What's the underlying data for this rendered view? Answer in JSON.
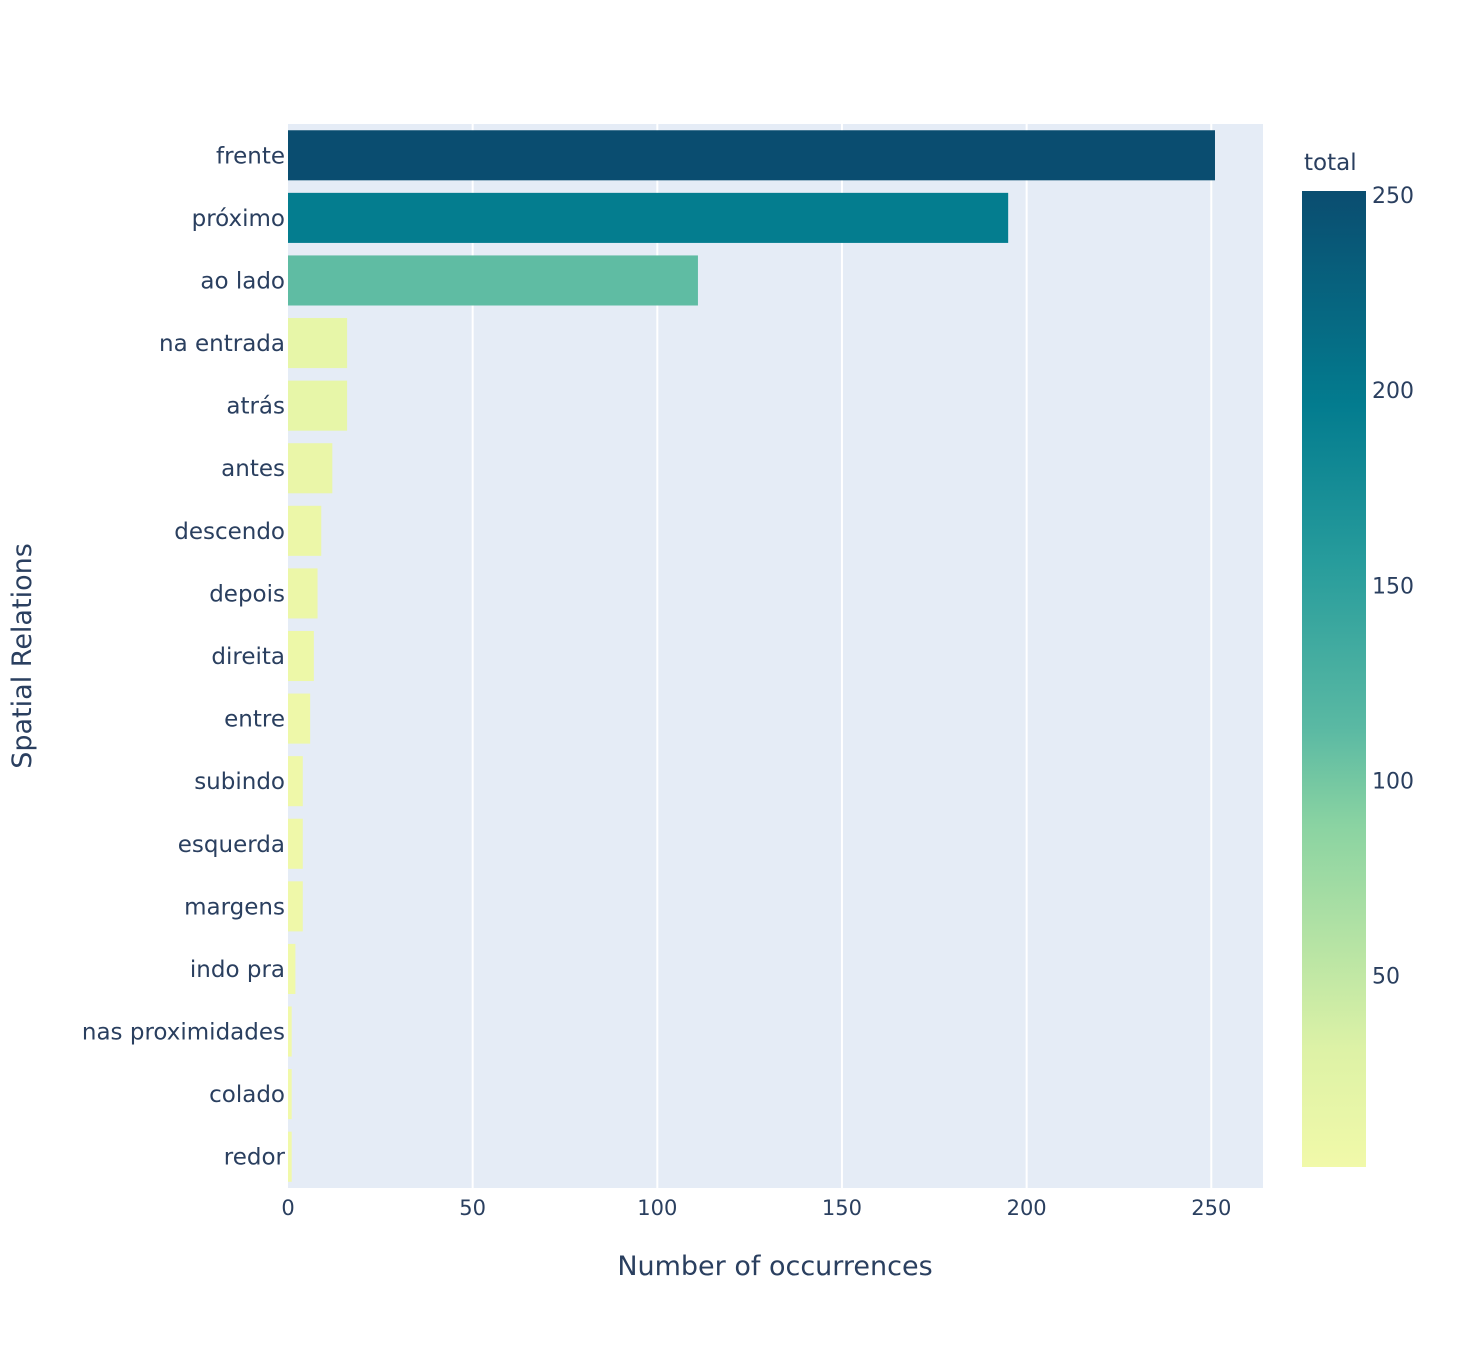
{
  "chart_data": {
    "type": "bar",
    "orientation": "horizontal",
    "xlabel": "Number of occurrences",
    "ylabel": "Spatial Relations",
    "xlim": [
      0,
      264
    ],
    "xticks": [
      0,
      50,
      100,
      150,
      200,
      250
    ],
    "grid": true,
    "categories": [
      "frente",
      "próximo",
      "ao lado",
      "na entrada",
      "atrás",
      "antes",
      "descendo",
      "depois",
      "direita",
      "entre",
      "subindo",
      "esquerda",
      "margens",
      "indo pra",
      "nas proximidades",
      "colado",
      "redor"
    ],
    "values": [
      251,
      195,
      111,
      16,
      16,
      12,
      9,
      8,
      7,
      6,
      4,
      4,
      4,
      2,
      1,
      1,
      1
    ],
    "colorbar": {
      "title": "total",
      "min": 1,
      "max": 251,
      "ticks": [
        50,
        100,
        150,
        200,
        250
      ],
      "colorscale": [
        "#ffffcc",
        "#a1dab4",
        "#41b6c4",
        "#2c7fb8",
        "#0c2c84"
      ]
    }
  },
  "colors": {
    "plot_background": "#e5ecf6",
    "grid": "#ffffff",
    "text": "#2a3f5f",
    "scale": [
      [
        0.0,
        "#f1f9a9"
      ],
      [
        0.12,
        "#ddf2a6"
      ],
      [
        0.35,
        "#8ad3a2"
      ],
      [
        0.45,
        "#5ab9a3"
      ],
      [
        0.62,
        "#279c9c"
      ],
      [
        0.78,
        "#037c8f"
      ],
      [
        1.0,
        "#0a4d70"
      ]
    ]
  }
}
